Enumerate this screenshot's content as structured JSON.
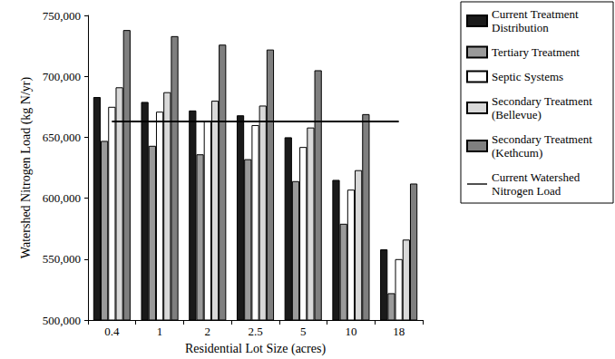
{
  "chart_data": {
    "type": "bar",
    "x_label": "Residential Lot Size (acres)",
    "y_label": "Watershed Nitrogen Load (kg N/yr)",
    "categories": [
      "0.4",
      "1",
      "2",
      "2.5",
      "5",
      "10",
      "18"
    ],
    "series": [
      {
        "name": "Current Treatment Distribution",
        "type": "bar",
        "color": "#1a1a1a",
        "values": [
          683000,
          679000,
          672000,
          668000,
          650000,
          615000,
          558000
        ]
      },
      {
        "name": "Tertiary Treatment",
        "type": "bar",
        "color": "#9a9a9a",
        "values": [
          647000,
          643000,
          636000,
          632000,
          614000,
          579000,
          522000
        ]
      },
      {
        "name": "Septic Systems",
        "type": "bar",
        "color": "#ffffff",
        "values": [
          675000,
          671000,
          663000,
          660000,
          642000,
          607000,
          550000
        ]
      },
      {
        "name": "Secondary Treatment (Bellevue)",
        "type": "bar",
        "color": "#d9d9d9",
        "values": [
          691000,
          687000,
          680000,
          676000,
          658000,
          623000,
          566000
        ]
      },
      {
        "name": "Secondary Treatment (Kethcum)",
        "type": "bar",
        "color": "#7f7f7f",
        "values": [
          738000,
          733000,
          726000,
          722000,
          705000,
          669000,
          612000
        ]
      },
      {
        "name": "Current Watershed Nitrogen Load",
        "type": "line",
        "color": "#000000",
        "line_style": "solid",
        "values": [
          663000,
          663000,
          663000,
          663000,
          663000,
          663000,
          663000
        ]
      }
    ],
    "ylim": [
      500000,
      750000
    ],
    "yticks": [
      {
        "value": 500000,
        "label": "500,000"
      },
      {
        "value": 550000,
        "label": "550,000"
      },
      {
        "value": 600000,
        "label": "600,000"
      },
      {
        "value": 650000,
        "label": "650,000"
      },
      {
        "value": 700000,
        "label": "700,000"
      },
      {
        "value": 750000,
        "label": "750,000"
      }
    ],
    "grid": false,
    "legend": "right"
  }
}
